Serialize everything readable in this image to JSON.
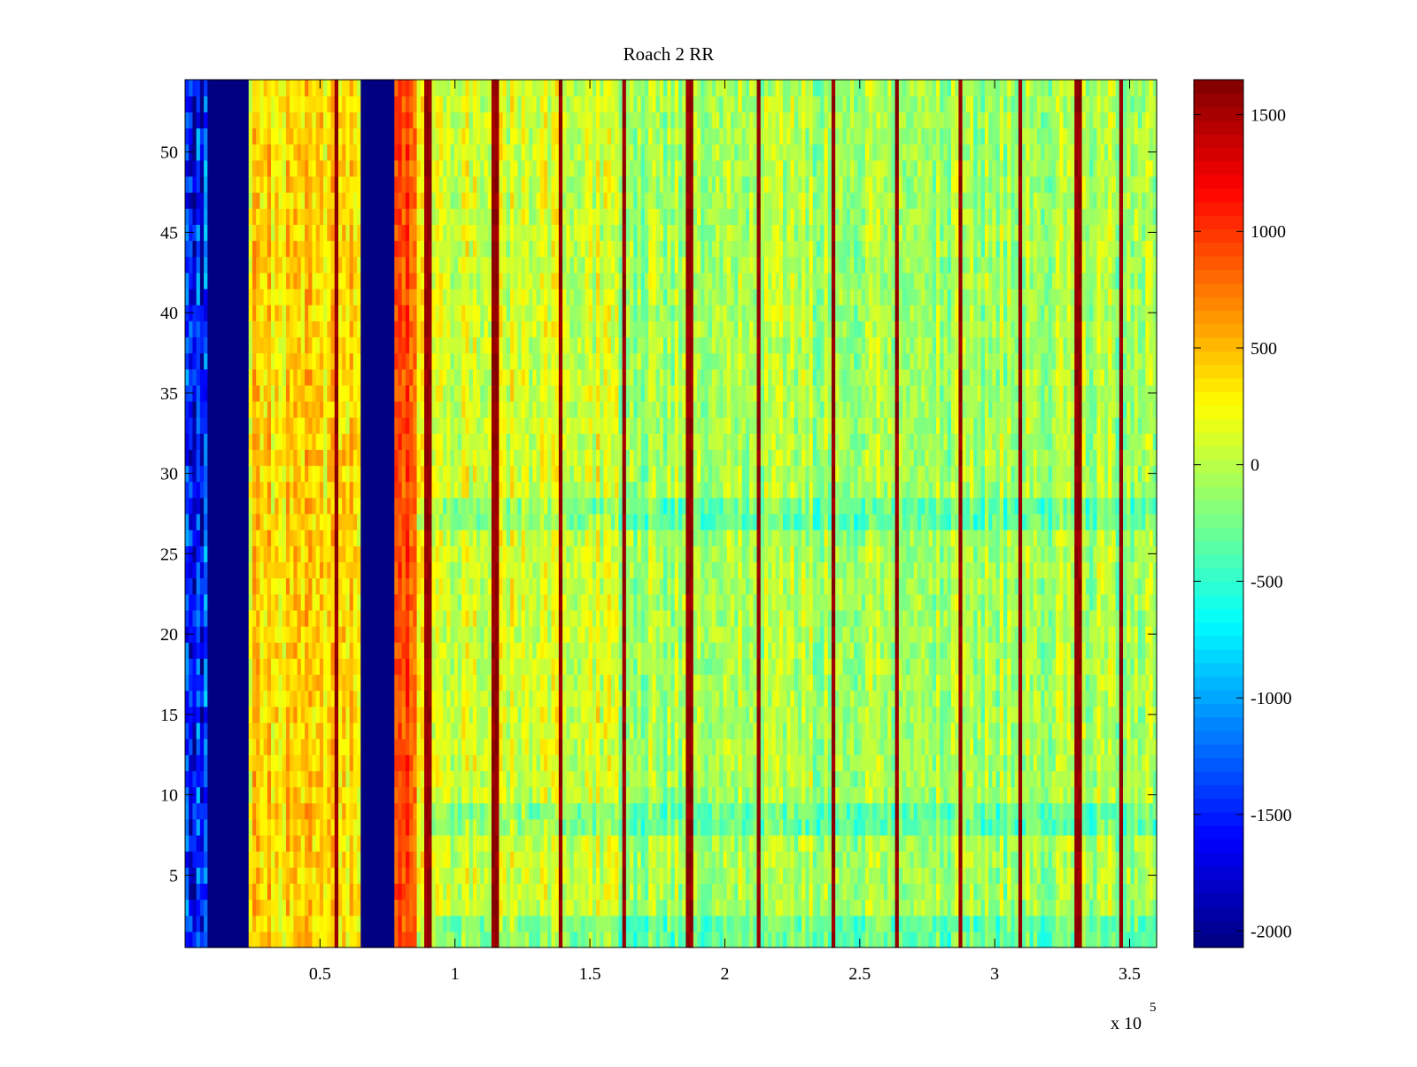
{
  "chart_data": {
    "type": "heatmap",
    "title": "Roach 2 RR",
    "xlabel": "",
    "ylabel": "",
    "colormap": "jet",
    "x_exponent_label": "x 10",
    "x_exponent": "5",
    "xlim": [
      1,
      360000
    ],
    "ylim": [
      0.5,
      54.5
    ],
    "rows": 54,
    "x_ticks": [
      {
        "value": 50000,
        "label": "0.5"
      },
      {
        "value": 100000,
        "label": "1"
      },
      {
        "value": 150000,
        "label": "1.5"
      },
      {
        "value": 200000,
        "label": "2"
      },
      {
        "value": 250000,
        "label": "2.5"
      },
      {
        "value": 300000,
        "label": "3"
      },
      {
        "value": 350000,
        "label": "3.5"
      }
    ],
    "y_ticks": [
      {
        "value": 5,
        "label": "5"
      },
      {
        "value": 10,
        "label": "10"
      },
      {
        "value": 15,
        "label": "15"
      },
      {
        "value": 20,
        "label": "20"
      },
      {
        "value": 25,
        "label": "25"
      },
      {
        "value": 30,
        "label": "30"
      },
      {
        "value": 35,
        "label": "35"
      },
      {
        "value": 40,
        "label": "40"
      },
      {
        "value": 45,
        "label": "45"
      },
      {
        "value": 50,
        "label": "50"
      }
    ],
    "colorbar": {
      "clim": [
        -2070,
        1650
      ],
      "ticks": [
        {
          "value": 1500,
          "label": "1500"
        },
        {
          "value": 1000,
          "label": "1000"
        },
        {
          "value": 500,
          "label": "500"
        },
        {
          "value": 0,
          "label": "0"
        },
        {
          "value": -500,
          "label": "-500"
        },
        {
          "value": -1000,
          "label": "-1000"
        },
        {
          "value": -1500,
          "label": "-1500"
        },
        {
          "value": -2000,
          "label": "-2000"
        }
      ]
    },
    "column_bands": [
      {
        "x_start": 1,
        "x_end": 23000,
        "level": -1500,
        "variation": 900,
        "description_only": false
      },
      {
        "x_start": 23000,
        "x_end": 65000,
        "level": 380,
        "variation": 450
      },
      {
        "x_start": 65000,
        "x_end": 77000,
        "level": -2070,
        "variation": 0
      },
      {
        "x_start": 77000,
        "x_end": 86000,
        "level": 900,
        "variation": 350
      },
      {
        "x_start": 86000,
        "x_end": 160000,
        "level": 120,
        "variation": 420
      },
      {
        "x_start": 160000,
        "x_end": 360000,
        "level": -60,
        "variation": 420
      }
    ],
    "vertical_stripes_x": [
      56000,
      90000,
      115000,
      139000,
      163000,
      187000,
      212000,
      240000,
      264000,
      287000,
      310000,
      331000,
      347000
    ],
    "stripe_value": 1650,
    "low_rows": [
      1,
      2,
      8,
      9,
      27,
      28
    ],
    "solid_blue_band": {
      "x_start": 8000,
      "x_end": 23000,
      "value": -2070
    }
  }
}
